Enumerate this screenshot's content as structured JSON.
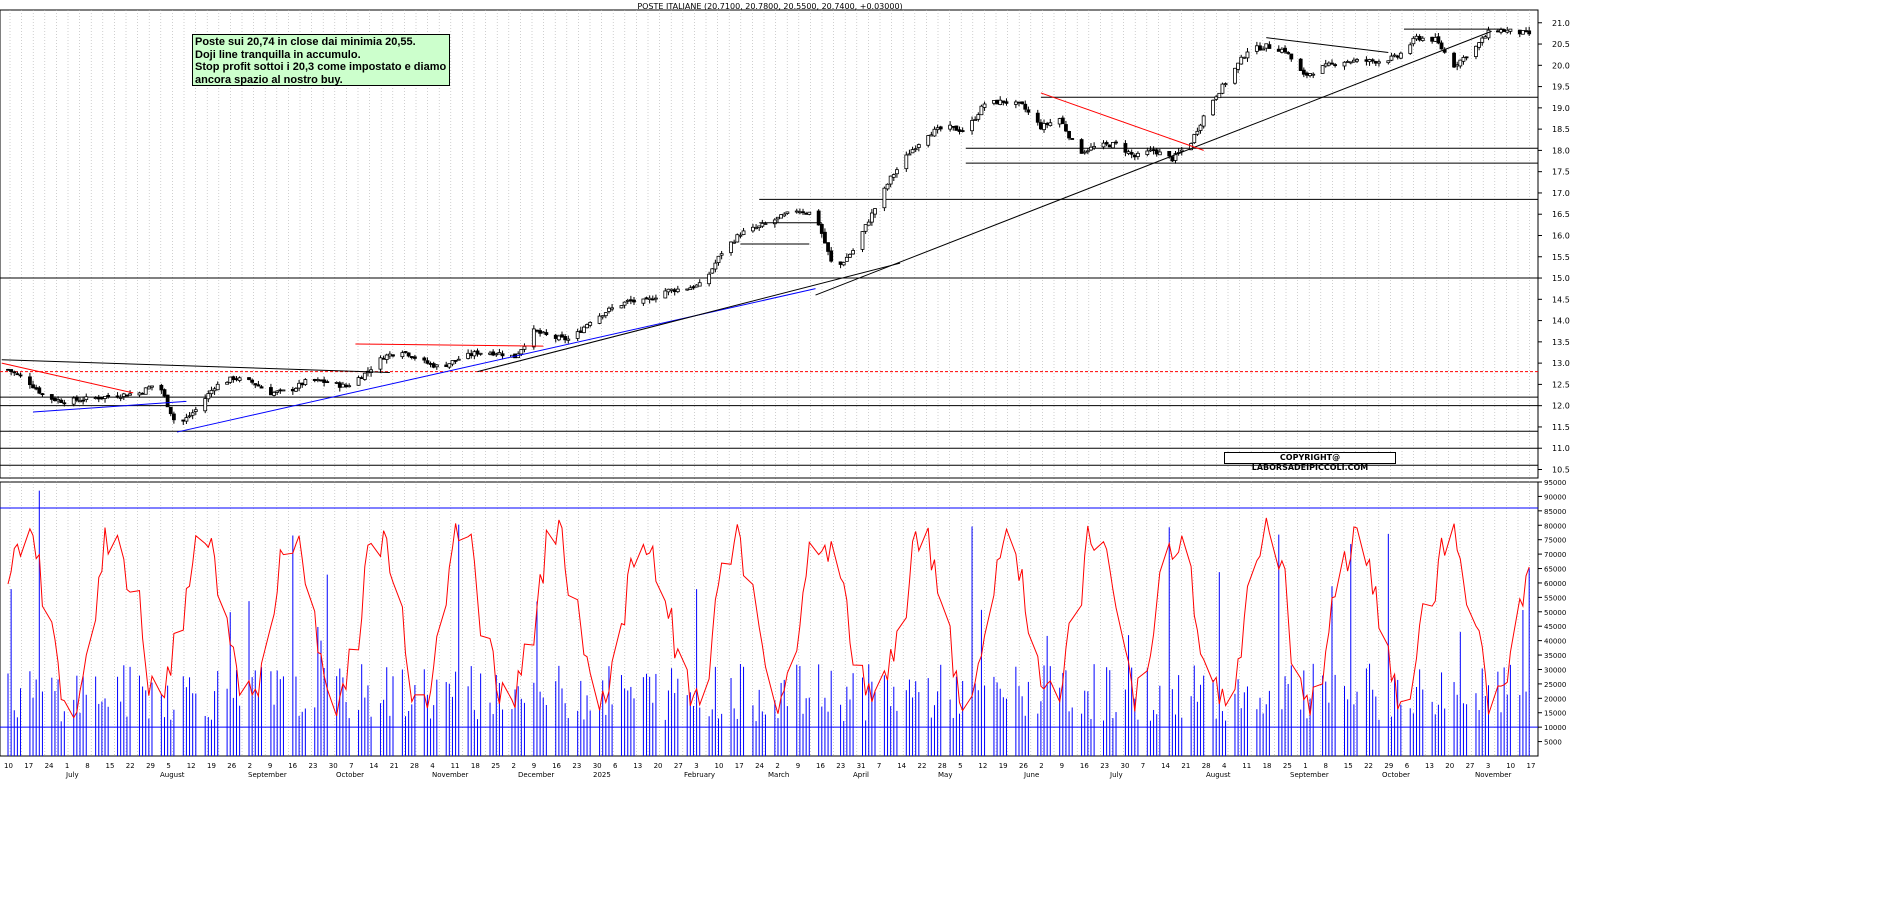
{
  "chart_title": "POSTE ITALIANE (20.7100, 20.7800, 20.5500, 20.7400, +0.03000)",
  "annotation_lines": [
    "Poste sui 20,74 in close dai minimia 20,55.",
    "Doji line tranquilla in accumulo.",
    "Stop profit sottoi i 20,3 come impostato e diamo",
    "ancora spazio al nostro buy."
  ],
  "copyright": "COPYRIGHT@ LABORSADEIPICCOLI.COM",
  "colors": {
    "candle": "#000000",
    "support_line": "#0000ff",
    "resistance_line": "#ff0000",
    "oscillator": "#ff0000",
    "volume": "#0000ff",
    "note_bg": "#ccffcc"
  },
  "chart_data": [
    {
      "type": "candlestick",
      "title": "POSTE ITALIANE (20.7100, 20.7800, 20.5500, 20.7400, +0.03000)",
      "ylim": [
        10.3,
        21.3
      ],
      "y_ticks": [
        "21.0",
        "20.5",
        "20.0",
        "19.5",
        "19.0",
        "18.5",
        "18.0",
        "17.5",
        "17.0",
        "16.5",
        "16.0",
        "15.5",
        "15.0",
        "14.5",
        "14.0",
        "13.5",
        "13.0",
        "12.5",
        "12.0",
        "11.5",
        "11.0",
        "10.5"
      ],
      "grid": "vertical dotted",
      "close_path": [
        [
          0,
          12.85
        ],
        [
          6,
          12.6
        ],
        [
          12,
          12.2
        ],
        [
          18,
          12.1
        ],
        [
          24,
          12.15
        ],
        [
          30,
          12.2
        ],
        [
          36,
          12.25
        ],
        [
          42,
          12.3
        ],
        [
          48,
          12.55
        ],
        [
          54,
          11.5
        ],
        [
          60,
          11.9
        ],
        [
          66,
          12.45
        ],
        [
          72,
          12.65
        ],
        [
          78,
          12.55
        ],
        [
          84,
          12.3
        ],
        [
          90,
          12.35
        ],
        [
          96,
          12.6
        ],
        [
          102,
          12.55
        ],
        [
          108,
          12.45
        ],
        [
          114,
          12.75
        ],
        [
          120,
          13.15
        ],
        [
          126,
          13.3
        ],
        [
          132,
          13.05
        ],
        [
          138,
          12.9
        ],
        [
          144,
          13.1
        ],
        [
          150,
          13.25
        ],
        [
          156,
          13.25
        ],
        [
          162,
          13.15
        ],
        [
          168,
          13.75
        ],
        [
          174,
          13.6
        ],
        [
          180,
          13.55
        ],
        [
          186,
          14.0
        ],
        [
          192,
          14.25
        ],
        [
          198,
          14.45
        ],
        [
          204,
          14.45
        ],
        [
          210,
          14.7
        ],
        [
          216,
          14.75
        ],
        [
          222,
          14.85
        ],
        [
          228,
          15.6
        ],
        [
          234,
          16.05
        ],
        [
          240,
          16.2
        ],
        [
          246,
          16.4
        ],
        [
          252,
          16.6
        ],
        [
          258,
          16.5
        ],
        [
          264,
          15.15
        ],
        [
          270,
          15.65
        ],
        [
          276,
          16.5
        ],
        [
          282,
          17.35
        ],
        [
          288,
          17.95
        ],
        [
          294,
          18.4
        ],
        [
          300,
          18.55
        ],
        [
          306,
          18.45
        ],
        [
          312,
          19.1
        ],
        [
          318,
          19.15
        ],
        [
          324,
          19.05
        ],
        [
          330,
          18.55
        ],
        [
          336,
          18.75
        ],
        [
          342,
          17.95
        ],
        [
          348,
          18.1
        ],
        [
          354,
          18.15
        ],
        [
          360,
          17.85
        ],
        [
          366,
          18.0
        ],
        [
          372,
          17.8
        ],
        [
          378,
          18.2
        ],
        [
          384,
          19.1
        ],
        [
          390,
          19.7
        ],
        [
          396,
          20.35
        ],
        [
          402,
          20.45
        ],
        [
          408,
          20.35
        ],
        [
          414,
          19.75
        ],
        [
          420,
          19.95
        ],
        [
          426,
          20.1
        ],
        [
          432,
          20.1
        ],
        [
          438,
          20.1
        ],
        [
          444,
          20.2
        ],
        [
          450,
          20.65
        ],
        [
          456,
          20.6
        ],
        [
          462,
          20.0
        ],
        [
          468,
          20.35
        ],
        [
          474,
          20.85
        ],
        [
          480,
          20.8
        ],
        [
          486,
          20.74
        ]
      ],
      "levels": [
        19.25,
        18.05,
        17.7,
        16.85,
        15.0,
        12.2,
        12.0,
        11.4,
        11.0,
        10.6,
        10.3
      ],
      "dashed_level": 12.8,
      "x_tick_labels": [
        "10",
        "17",
        "24",
        "1",
        "8",
        "15",
        "22",
        "29",
        "5",
        "12",
        "19",
        "26",
        "2",
        "9",
        "16",
        "23",
        "30",
        "7",
        "14",
        "21",
        "28",
        "4",
        "11",
        "18",
        "25",
        "2",
        "9",
        "16",
        "23",
        "30",
        "6",
        "13",
        "20",
        "27",
        "3",
        "10",
        "17",
        "24",
        "2",
        "9",
        "16",
        "23",
        "31",
        "7",
        "14",
        "22",
        "28",
        "5",
        "12",
        "19",
        "26",
        "2",
        "9",
        "16",
        "23",
        "30",
        "7",
        "14",
        "21",
        "28",
        "4",
        "11",
        "18",
        "25",
        "1",
        "8",
        "15",
        "22",
        "29",
        "6",
        "13",
        "20",
        "27",
        "3",
        "10",
        "17"
      ],
      "month_labels": [
        "July",
        "August",
        "September",
        "October",
        "November",
        "December",
        "2025",
        "February",
        "March",
        "April",
        "May",
        "June",
        "July",
        "August",
        "September",
        "October",
        "November"
      ]
    },
    {
      "type": "bar",
      "series": [
        {
          "values": "volume"
        }
      ],
      "ylim": [
        0,
        95000
      ],
      "y_ticks": [
        "95000",
        "90000",
        "85000",
        "80000",
        "75000",
        "70000",
        "65000",
        "60000",
        "55000",
        "50000",
        "45000",
        "40000",
        "35000",
        "30000",
        "25000",
        "20000",
        "15000",
        "10000",
        "5000"
      ],
      "reference_levels": [
        86000,
        10000
      ]
    },
    {
      "type": "line",
      "series": [
        {
          "values": "oscillator"
        }
      ]
    }
  ]
}
